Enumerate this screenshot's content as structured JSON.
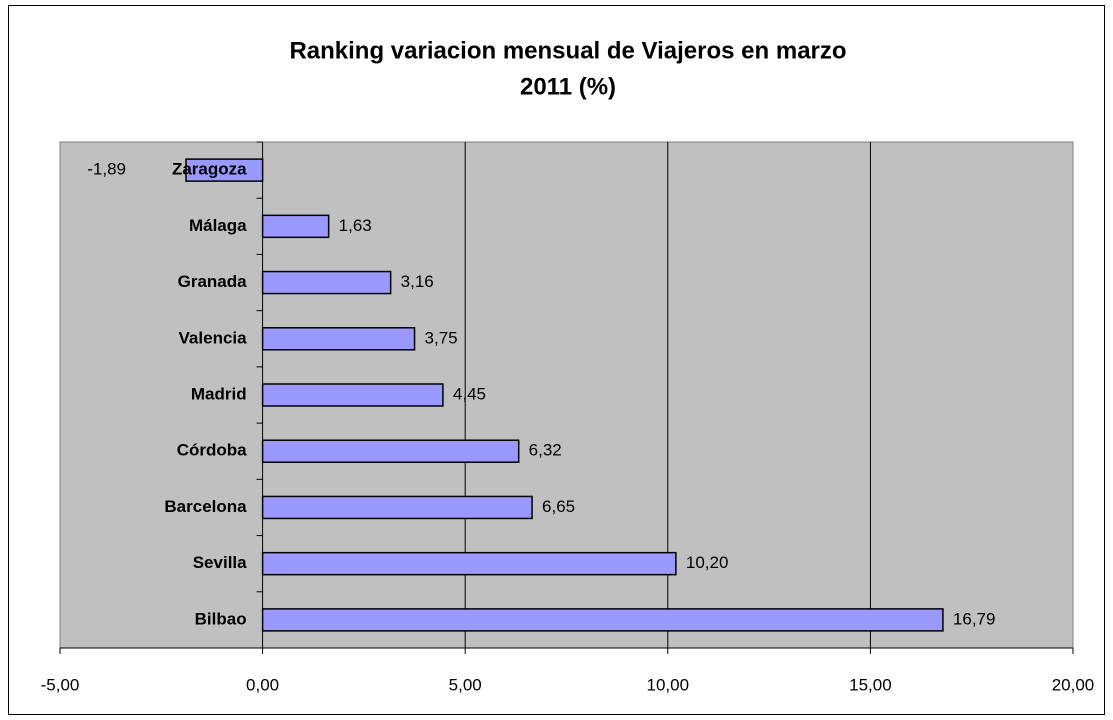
{
  "chart_data": {
    "type": "bar",
    "orientation": "horizontal",
    "title": [
      "Ranking variacion mensual de Viajeros en marzo",
      "2011 (%)"
    ],
    "categories": [
      "Zaragoza",
      "Málaga",
      "Granada",
      "Valencia",
      "Madrid",
      "Córdoba",
      "Barcelona",
      "Sevilla",
      "Bilbao"
    ],
    "values": [
      -1.89,
      1.63,
      3.16,
      3.75,
      4.45,
      6.32,
      6.65,
      10.2,
      16.79
    ],
    "value_labels": [
      "-1,89",
      "1,63",
      "3,16",
      "3,75",
      "4,45",
      "6,32",
      "6,65",
      "10,20",
      "16,79"
    ],
    "color": "#9999ff",
    "xlim": [
      -5,
      20
    ],
    "xticks": [
      {
        "value": -5,
        "label": "-5,00"
      },
      {
        "value": 0,
        "label": "0,00"
      },
      {
        "value": 5,
        "label": "5,00"
      },
      {
        "value": 10,
        "label": "10,00"
      },
      {
        "value": 15,
        "label": "15,00"
      },
      {
        "value": 20,
        "label": "20,00"
      }
    ],
    "grid": true
  }
}
